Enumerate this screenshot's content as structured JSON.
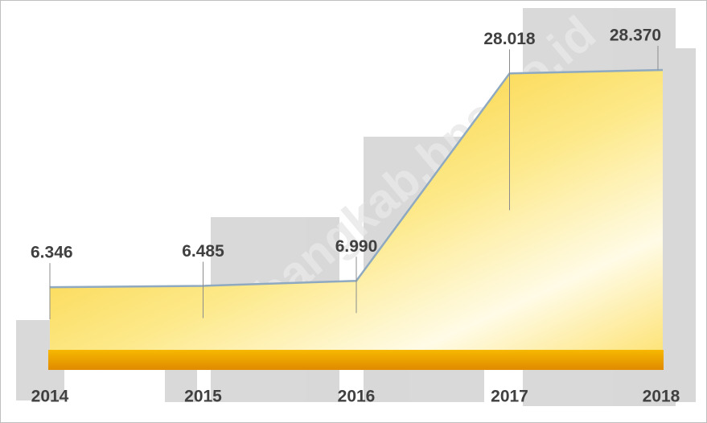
{
  "chart_data": {
    "type": "area",
    "categories": [
      "2014",
      "2015",
      "2016",
      "2017",
      "2018"
    ],
    "values": [
      6.346,
      6.485,
      6.99,
      28.018,
      28.37
    ],
    "value_labels": [
      "6.346",
      "6.485",
      "6.990",
      "28.018",
      "28.370"
    ],
    "color": "#f5c400",
    "watermark": "bangkab.bps.go.id"
  }
}
